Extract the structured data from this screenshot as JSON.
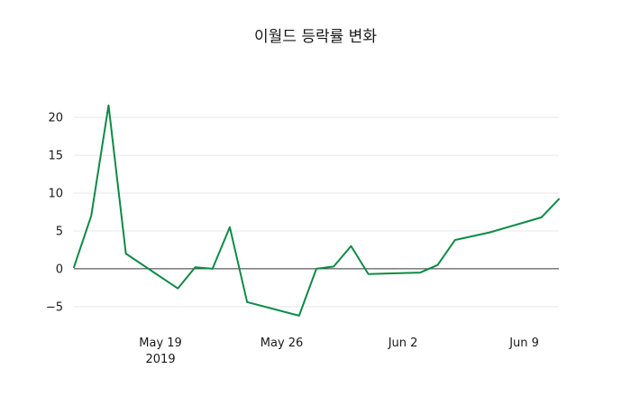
{
  "figure": {
    "background": "#ffffff"
  },
  "chart_data": {
    "type": "line",
    "title": "이월드 등락률 변화",
    "xlabel": "",
    "ylabel": "",
    "grid": true,
    "grid_color": "#e7e7e7",
    "zero_line": true,
    "zero_line_color": "#3a3a3a",
    "legend": false,
    "xlim": [
      "2019-05-14",
      "2019-06-11"
    ],
    "ylim": [
      -8,
      23
    ],
    "yticks": [
      {
        "value": -5,
        "label": "−5"
      },
      {
        "value": 0,
        "label": "0"
      },
      {
        "value": 5,
        "label": "5"
      },
      {
        "value": 10,
        "label": "10"
      },
      {
        "value": 15,
        "label": "15"
      },
      {
        "value": 20,
        "label": "20"
      }
    ],
    "xticks": [
      {
        "date": "2019-05-19",
        "label": "May 19",
        "sublabel": "2019"
      },
      {
        "date": "2019-05-26",
        "label": "May 26",
        "sublabel": ""
      },
      {
        "date": "2019-06-02",
        "label": "Jun 2",
        "sublabel": ""
      },
      {
        "date": "2019-06-09",
        "label": "Jun 9",
        "sublabel": ""
      }
    ],
    "series": [
      {
        "name": "등락률",
        "color": "#0e8a47",
        "x": [
          "2019-05-14",
          "2019-05-15",
          "2019-05-16",
          "2019-05-17",
          "2019-05-20",
          "2019-05-21",
          "2019-05-22",
          "2019-05-23",
          "2019-05-24",
          "2019-05-27",
          "2019-05-28",
          "2019-05-29",
          "2019-05-30",
          "2019-05-31",
          "2019-06-03",
          "2019-06-04",
          "2019-06-05",
          "2019-06-07",
          "2019-06-10",
          "2019-06-11"
        ],
        "values": [
          0.2,
          7.0,
          21.6,
          2.0,
          -2.6,
          0.2,
          0.0,
          5.5,
          -4.4,
          -6.2,
          0.0,
          0.3,
          3.0,
          -0.7,
          -0.5,
          0.5,
          3.8,
          4.8,
          6.8,
          9.2
        ]
      }
    ]
  }
}
